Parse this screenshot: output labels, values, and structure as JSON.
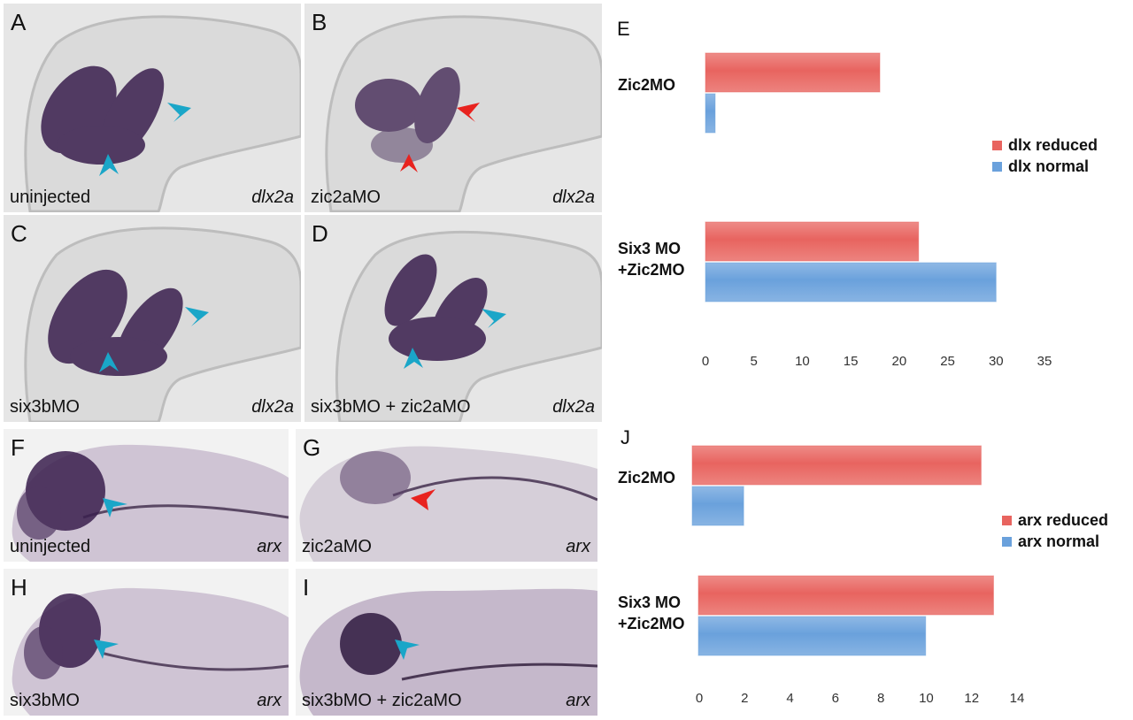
{
  "panels": {
    "A": {
      "letter": "A",
      "condition": "uninjected",
      "gene": "dlx2a"
    },
    "B": {
      "letter": "B",
      "condition": "zic2aMO",
      "gene": "dlx2a"
    },
    "C": {
      "letter": "C",
      "condition": "six3bMO",
      "gene": "dlx2a"
    },
    "D": {
      "letter": "D",
      "condition": "six3bMO + zic2aMO",
      "gene": "dlx2a"
    },
    "F": {
      "letter": "F",
      "condition": "uninjected",
      "gene": "arx"
    },
    "G": {
      "letter": "G",
      "condition": "zic2aMO",
      "gene": "arx"
    },
    "H": {
      "letter": "H",
      "condition": "six3bMO",
      "gene": "arx"
    },
    "I": {
      "letter": "I",
      "condition": "six3bMO + zic2aMO",
      "gene": "arx"
    }
  },
  "colors": {
    "arrow_normal": "#1aa6c8",
    "arrow_reduced": "#e8231f",
    "stain": "#3a1f4e",
    "bar_reduced": "#e8645f",
    "bar_normal": "#6aa1dc"
  },
  "chart_data": [
    {
      "letter": "E",
      "type": "bar",
      "orientation": "horizontal",
      "categories": [
        "Zic2MO",
        "Six3 MO\n+Zic2MO"
      ],
      "category_lines": [
        [
          "Zic2MO"
        ],
        [
          "Six3 MO",
          "+Zic2MO"
        ]
      ],
      "series": [
        {
          "name": "dlx reduced",
          "values": [
            18,
            22
          ],
          "color": "#e8645f"
        },
        {
          "name": "dlx normal",
          "values": [
            1,
            30
          ],
          "color": "#6aa1dc"
        }
      ],
      "xlim": [
        0,
        35
      ],
      "xticks": [
        "0",
        "5",
        "10",
        "15",
        "20",
        "25",
        "30",
        "35"
      ],
      "legend": "right",
      "grid": false
    },
    {
      "letter": "J",
      "type": "bar",
      "orientation": "horizontal",
      "categories": [
        "Zic2MO",
        "Six3 MO\n+Zic2MO"
      ],
      "category_lines": [
        [
          "Zic2MO"
        ],
        [
          "Six3 MO",
          "+Zic2MO"
        ]
      ],
      "series": [
        {
          "name": "arx reduced",
          "values": [
            12.7,
            13
          ],
          "color": "#e8645f"
        },
        {
          "name": "arx normal",
          "values": [
            2,
            10
          ],
          "color": "#6aa1dc"
        }
      ],
      "xlim": [
        0,
        14
      ],
      "xticks": [
        "0",
        "2",
        "4",
        "6",
        "8",
        "10",
        "12",
        "14"
      ],
      "legend": "right",
      "grid": false
    }
  ]
}
